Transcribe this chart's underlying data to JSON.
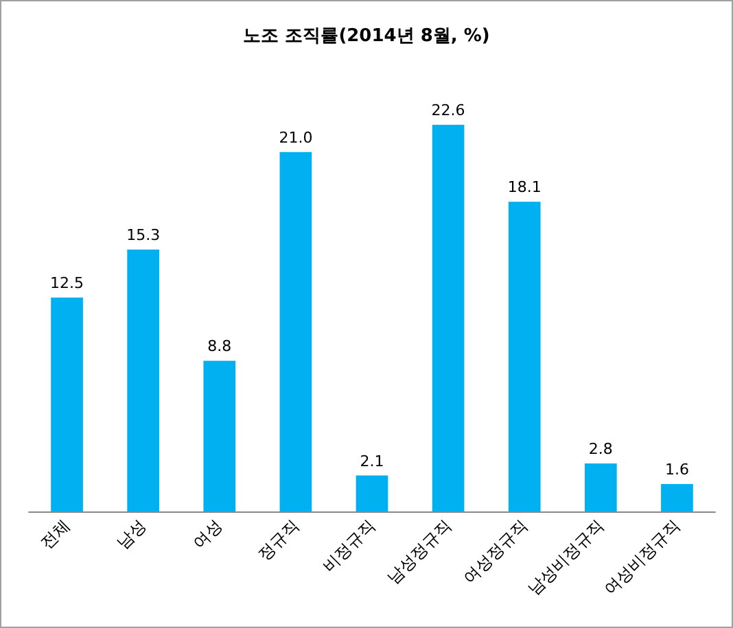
{
  "chart_data": {
    "type": "bar",
    "title": "노조 조직률(2014년 8월, %)",
    "categories": [
      "전체",
      "남성",
      "여성",
      "정규직",
      "비정규직",
      "남성정규직",
      "여성정규직",
      "남성비정규직",
      "여성비정규직"
    ],
    "values": [
      12.5,
      15.3,
      8.8,
      21.0,
      2.1,
      22.6,
      18.1,
      2.8,
      1.6
    ],
    "value_labels": [
      "12.5",
      "15.3",
      "8.8",
      "21.0",
      "2.1",
      "22.6",
      "18.1",
      "2.8",
      "1.6"
    ],
    "color": "#00b0f0",
    "grid": false
  }
}
